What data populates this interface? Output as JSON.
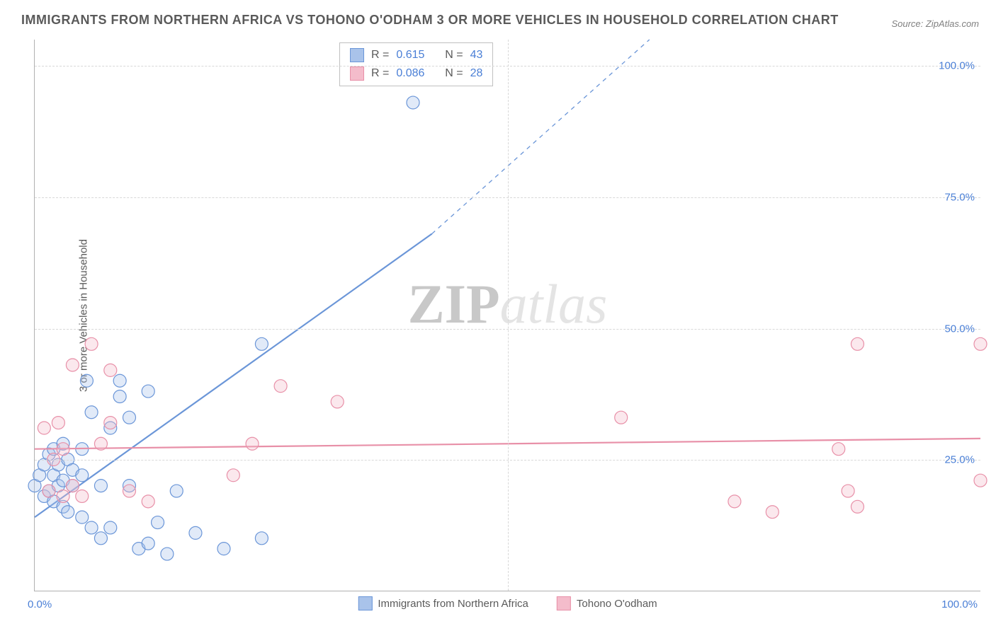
{
  "title": "IMMIGRANTS FROM NORTHERN AFRICA VS TOHONO O'ODHAM 3 OR MORE VEHICLES IN HOUSEHOLD CORRELATION CHART",
  "source": "Source: ZipAtlas.com",
  "ylabel": "3 or more Vehicles in Household",
  "watermark_a": "ZIP",
  "watermark_b": "atlas",
  "chart": {
    "type": "scatter",
    "xlim": [
      0,
      100
    ],
    "ylim": [
      0,
      105
    ],
    "x_ticks": [
      0,
      50,
      100
    ],
    "x_tick_labels": [
      "0.0%",
      "",
      "100.0%"
    ],
    "y_ticks": [
      25,
      50,
      75,
      100
    ],
    "y_tick_labels": [
      "25.0%",
      "50.0%",
      "75.0%",
      "100.0%"
    ],
    "grid_color": "#d8d8d8",
    "background_color": "#ffffff",
    "marker_radius": 9,
    "marker_stroke_width": 1.2,
    "marker_fill_opacity": 0.35,
    "series": [
      {
        "name": "Immigrants from Northern Africa",
        "color_stroke": "#6b96d8",
        "color_fill": "#a9c3ea",
        "R_label": "R =",
        "R": "0.615",
        "N_label": "N =",
        "N": "43",
        "trend": {
          "x1": 0,
          "y1": 14,
          "x2": 42,
          "y2": 68,
          "dash_x2": 65,
          "dash_y2": 105,
          "width": 2.2
        },
        "points": [
          [
            0,
            20
          ],
          [
            0.5,
            22
          ],
          [
            1,
            18
          ],
          [
            1,
            24
          ],
          [
            1.5,
            19
          ],
          [
            1.5,
            26
          ],
          [
            2,
            17
          ],
          [
            2,
            22
          ],
          [
            2,
            27
          ],
          [
            2.5,
            20
          ],
          [
            2.5,
            24
          ],
          [
            3,
            16
          ],
          [
            3,
            21
          ],
          [
            3,
            28
          ],
          [
            3.5,
            15
          ],
          [
            3.5,
            25
          ],
          [
            4,
            20
          ],
          [
            4,
            23
          ],
          [
            5,
            14
          ],
          [
            5,
            22
          ],
          [
            5,
            27
          ],
          [
            5.5,
            40
          ],
          [
            6,
            12
          ],
          [
            6,
            34
          ],
          [
            7,
            10
          ],
          [
            7,
            20
          ],
          [
            8,
            12
          ],
          [
            8,
            31
          ],
          [
            9,
            37
          ],
          [
            9,
            40
          ],
          [
            10,
            20
          ],
          [
            10,
            33
          ],
          [
            11,
            8
          ],
          [
            12,
            9
          ],
          [
            12,
            38
          ],
          [
            13,
            13
          ],
          [
            14,
            7
          ],
          [
            15,
            19
          ],
          [
            17,
            11
          ],
          [
            20,
            8
          ],
          [
            24,
            47
          ],
          [
            24,
            10
          ],
          [
            40,
            93
          ]
        ]
      },
      {
        "name": "Tohono O'odham",
        "color_stroke": "#e890a8",
        "color_fill": "#f4bccb",
        "R_label": "R =",
        "R": "0.086",
        "N_label": "N =",
        "N": "28",
        "trend": {
          "x1": 0,
          "y1": 27,
          "x2": 100,
          "y2": 29,
          "width": 2.2
        },
        "points": [
          [
            1,
            31
          ],
          [
            1.5,
            19
          ],
          [
            2,
            25
          ],
          [
            2.5,
            32
          ],
          [
            3,
            18
          ],
          [
            3,
            27
          ],
          [
            4,
            20
          ],
          [
            4,
            43
          ],
          [
            5,
            18
          ],
          [
            6,
            47
          ],
          [
            7,
            28
          ],
          [
            8,
            32
          ],
          [
            8,
            42
          ],
          [
            10,
            19
          ],
          [
            12,
            17
          ],
          [
            21,
            22
          ],
          [
            23,
            28
          ],
          [
            26,
            39
          ],
          [
            32,
            36
          ],
          [
            62,
            33
          ],
          [
            74,
            17
          ],
          [
            78,
            15
          ],
          [
            85,
            27
          ],
          [
            86,
            19
          ],
          [
            87,
            47
          ],
          [
            87,
            16
          ],
          [
            100,
            47
          ],
          [
            100,
            21
          ]
        ]
      }
    ]
  },
  "bottom_legend": [
    {
      "label": "Immigrants from Northern Africa",
      "fill": "#a9c3ea",
      "stroke": "#6b96d8"
    },
    {
      "label": "Tohono O'odham",
      "fill": "#f4bccb",
      "stroke": "#e890a8"
    }
  ]
}
